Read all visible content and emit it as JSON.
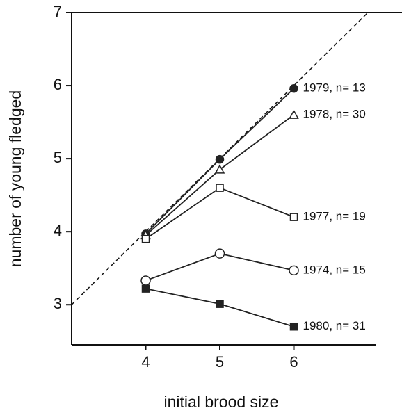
{
  "chart_data": {
    "type": "line",
    "x_label": "initial brood size",
    "y_label": "number of young fledged",
    "x": [
      4,
      5,
      6
    ],
    "series": [
      {
        "name": "1979, n= 13",
        "color": "#222",
        "marker": "filled-circle",
        "values": [
          3.97,
          4.99,
          5.96
        ]
      },
      {
        "name": "1978, n= 30",
        "color": "#222",
        "marker": "open-triangle",
        "values": [
          3.95,
          4.85,
          5.6
        ]
      },
      {
        "name": "1977, n= 19",
        "color": "#222",
        "marker": "open-square",
        "values": [
          3.9,
          4.6,
          4.2
        ]
      },
      {
        "name": "1974, n= 15",
        "color": "#222",
        "marker": "open-circle",
        "values": [
          3.33,
          3.7,
          3.47
        ]
      },
      {
        "name": "1980, n= 31",
        "color": "#222",
        "marker": "filled-square",
        "values": [
          3.22,
          3.01,
          2.7
        ]
      }
    ],
    "reference_line": {
      "x": [
        3,
        7
      ],
      "values": [
        3,
        7
      ],
      "style": "dashed"
    },
    "xlim": [
      3,
      7.4
    ],
    "ylim": [
      2.45,
      7
    ],
    "xticks": [
      4,
      5,
      6
    ],
    "yticks": [
      3,
      4,
      5,
      6,
      7
    ],
    "grid": false
  }
}
